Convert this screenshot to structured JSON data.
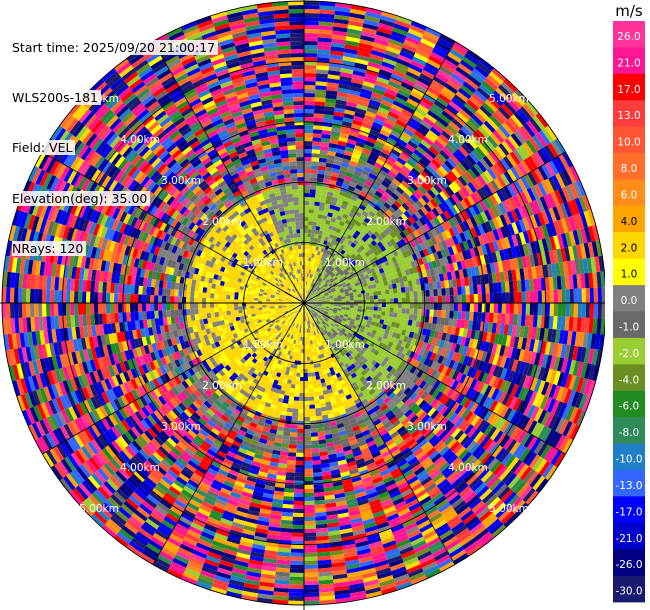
{
  "info": {
    "start_time": "Start time: 2025/09/20 21:00:17",
    "instrument": "WLS200s-181",
    "field": "Field: VEL",
    "elevation": "Elevation(deg): 35.00",
    "nrays": "NRays: 120"
  },
  "colorbar": {
    "unit": "m/s",
    "ticks": [
      "26.0",
      "21.0",
      "17.0",
      "13.0",
      "10.0",
      "8.0",
      "6.0",
      "4.0",
      "2.0",
      "1.0",
      "0.0",
      "-1.0",
      "-2.0",
      "-4.0",
      "-6.0",
      "-8.0",
      "-10.0",
      "-13.0",
      "-17.0",
      "-21.0",
      "-26.0",
      "-30.0"
    ],
    "colors": [
      "#ff3399",
      "#ff1493",
      "#ff0000",
      "#ff3b3b",
      "#ff5533",
      "#ff6f2a",
      "#ff8c1a",
      "#ffa500",
      "#ffd700",
      "#ffff00",
      "#808080",
      "#696969",
      "#9acd32",
      "#6b8e23",
      "#228b22",
      "#2e8b57",
      "#1e7fc8",
      "#3366ff",
      "#0000ff",
      "#0000cd",
      "#000080",
      "#191970"
    ]
  },
  "chart_data": {
    "type": "heatmap",
    "title": "",
    "field": "VEL",
    "unit": "m/s",
    "nrays": 120,
    "max_range_km": 5.0,
    "range_rings_km": [
      1.0,
      2.0,
      3.0,
      4.0,
      5.0
    ],
    "ring_labels": [
      "1.00km",
      "2.00km",
      "3.00km",
      "4.00km",
      "5.00km"
    ],
    "spoke_spacing_deg": 30,
    "regions": [
      {
        "description": "near-field yellow returns",
        "range_km": [
          0.0,
          1.0
        ],
        "value_ms": 2.0
      },
      {
        "description": "green/olive returns (receding)",
        "azimuth_deg": [
          0,
          150
        ],
        "range_km": [
          0.0,
          2.0
        ],
        "value_ms": -2.0
      },
      {
        "description": "yellow/gold returns (approaching)",
        "azimuth_deg": [
          150,
          350
        ],
        "range_km": [
          0.0,
          2.0
        ],
        "value_ms": 3.0
      },
      {
        "description": "noise beyond ~2 km",
        "range_km": [
          2.0,
          5.0
        ],
        "value_ms": "random"
      }
    ]
  }
}
